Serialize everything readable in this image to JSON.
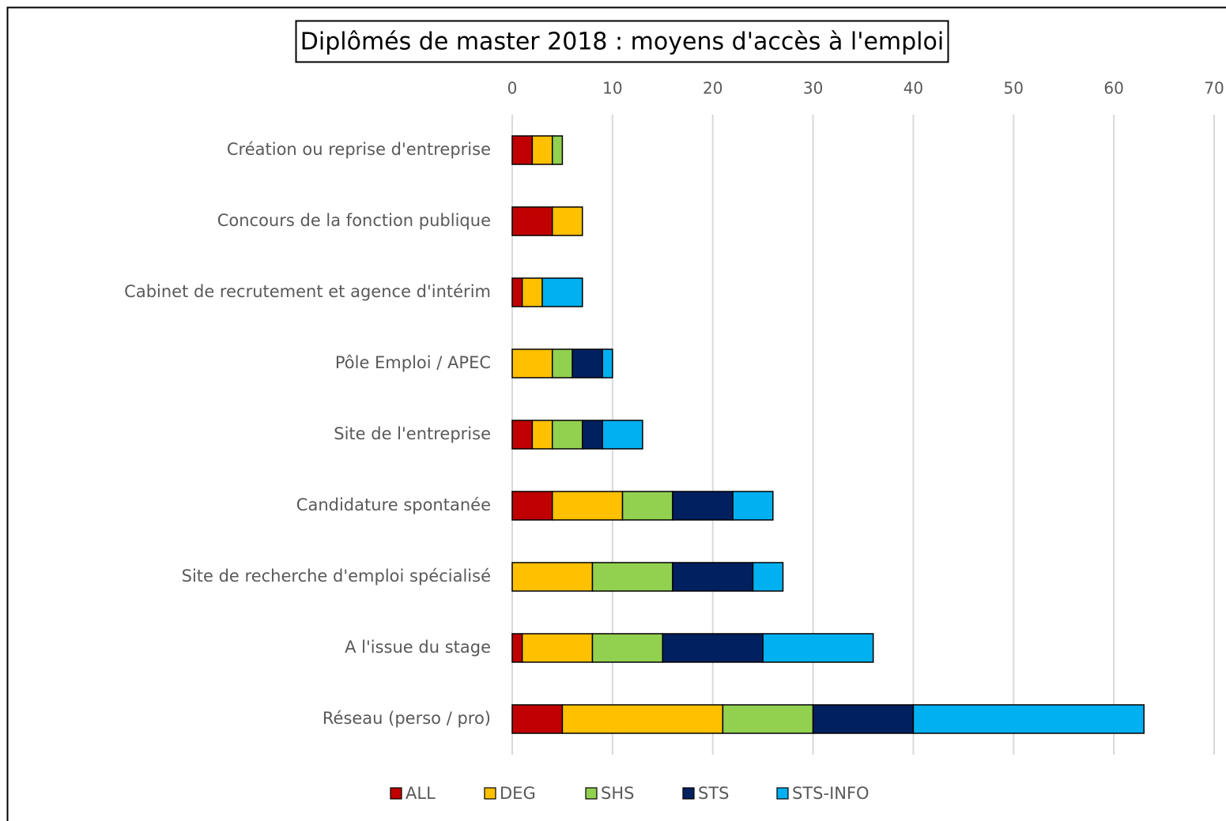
{
  "chart_data": {
    "type": "bar",
    "orientation": "horizontal",
    "stacked": true,
    "title": "Diplômés de master 2018 : moyens d'accès à l'emploi",
    "categories": [
      "Création ou reprise d'entreprise",
      "Concours de la fonction publique",
      "Cabinet de recrutement et agence d'intérim",
      "Pôle Emploi / APEC",
      "Site de l'entreprise",
      "Candidature spontanée",
      "Site de recherche d'emploi spécialisé",
      "A l'issue du stage",
      "Réseau (perso / pro)"
    ],
    "series": [
      {
        "name": "ALL",
        "color": "#c00000",
        "values": [
          2,
          4,
          1,
          0,
          2,
          4,
          0,
          1,
          5
        ]
      },
      {
        "name": "DEG",
        "color": "#ffc000",
        "values": [
          2,
          3,
          2,
          4,
          2,
          7,
          8,
          7,
          16
        ]
      },
      {
        "name": "SHS",
        "color": "#92d050",
        "values": [
          1,
          0,
          0,
          2,
          3,
          5,
          8,
          7,
          9
        ]
      },
      {
        "name": "STS",
        "color": "#002060",
        "values": [
          0,
          0,
          0,
          3,
          2,
          6,
          8,
          10,
          10
        ]
      },
      {
        "name": "STS-INFO",
        "color": "#00b0f0",
        "values": [
          0,
          0,
          4,
          1,
          4,
          4,
          3,
          11,
          23
        ]
      }
    ],
    "xlim": [
      0,
      70
    ],
    "xticks": [
      0,
      10,
      20,
      30,
      40,
      50,
      60,
      70
    ],
    "grid": true,
    "legend": "bottom"
  }
}
